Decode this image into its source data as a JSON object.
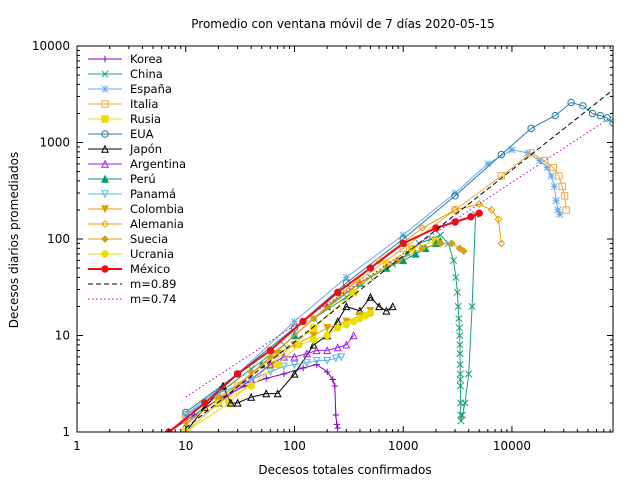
{
  "chart_data": {
    "type": "line",
    "title": "Promedio con ventana móvil de 7 días 2020-05-15",
    "xlabel": "Decesos totales confirmados",
    "ylabel": "Decesos diarios promediados",
    "xscale": "log",
    "yscale": "log",
    "xlim": [
      1,
      85000
    ],
    "ylim": [
      1,
      10000
    ],
    "xticks": [
      {
        "value": 1,
        "label": "1"
      },
      {
        "value": 10,
        "label": "10"
      },
      {
        "value": 100,
        "label": "100"
      },
      {
        "value": 1000,
        "label": "1000"
      },
      {
        "value": 10000,
        "label": "10000"
      }
    ],
    "yticks": [
      {
        "value": 1,
        "label": "1"
      },
      {
        "value": 10,
        "label": "10"
      },
      {
        "value": 100,
        "label": "100"
      },
      {
        "value": 1000,
        "label": "1000"
      },
      {
        "value": 10000,
        "label": "10000"
      }
    ],
    "grid": false,
    "legend_position": "top-left",
    "series": [
      {
        "name": "Korea",
        "color": "#7f00bf",
        "marker": "plus",
        "x": [
          7,
          12,
          20,
          35,
          55,
          80,
          120,
          160,
          200,
          225,
          235,
          240,
          245,
          250
        ],
        "y": [
          1,
          1.5,
          2.2,
          3,
          3.6,
          4,
          4.6,
          5,
          4.2,
          3.5,
          3,
          1.5,
          1.2,
          1.1
        ]
      },
      {
        "name": "China",
        "color": "#1a9f7f",
        "marker": "x",
        "x": [
          10,
          20,
          40,
          80,
          150,
          300,
          500,
          800,
          1100,
          1400,
          1800,
          2200,
          2600,
          2900,
          3050,
          3150,
          3200,
          3250,
          3290,
          3310,
          3320,
          3330,
          3340,
          3345,
          3350,
          3360,
          3370,
          3380,
          3400,
          3500,
          3700,
          4000,
          4300,
          4633
        ],
        "y": [
          1.2,
          2.5,
          4.5,
          8,
          15,
          25,
          40,
          55,
          70,
          90,
          100,
          110,
          90,
          60,
          40,
          28,
          20,
          15,
          12,
          10,
          8,
          6.5,
          5,
          4,
          3.5,
          3,
          2,
          1.5,
          1.3,
          1.5,
          2,
          4,
          20,
          180
        ]
      },
      {
        "name": "España",
        "color": "#66aaee",
        "marker": "star",
        "x": [
          10,
          30,
          100,
          300,
          1000,
          3000,
          6000,
          10000,
          14000,
          18000,
          21000,
          23000,
          24500,
          25500,
          26500,
          27500
        ],
        "y": [
          1.5,
          4,
          14,
          40,
          110,
          300,
          600,
          840,
          780,
          650,
          550,
          450,
          350,
          250,
          200,
          180
        ]
      },
      {
        "name": "Italia",
        "color": "#eeaa44",
        "marker": "square",
        "x": [
          10,
          30,
          100,
          300,
          1000,
          3000,
          8000,
          15000,
          20000,
          24000,
          27000,
          29000,
          30500,
          31500
        ],
        "y": [
          1.5,
          3,
          10,
          30,
          80,
          200,
          450,
          780,
          650,
          550,
          450,
          350,
          280,
          200
        ]
      },
      {
        "name": "Rusia",
        "color": "#f2d800",
        "marker": "square-filled",
        "x": [
          10,
          25,
          60,
          150,
          350,
          700,
          1200,
          2000
        ],
        "y": [
          1,
          2,
          5,
          12,
          28,
          55,
          80,
          95
        ]
      },
      {
        "name": "EUA",
        "color": "#2b7aa5",
        "marker": "circle",
        "x": [
          10,
          30,
          100,
          300,
          1000,
          3000,
          8000,
          15000,
          25000,
          35000,
          45000,
          55000,
          65000,
          75000,
          85000
        ],
        "y": [
          1.6,
          4,
          12,
          35,
          100,
          280,
          750,
          1400,
          1900,
          2600,
          2400,
          2000,
          1900,
          1800,
          1600
        ]
      },
      {
        "name": "Japón",
        "color": "#000000",
        "marker": "triangle",
        "x": [
          10,
          15,
          22,
          26,
          30,
          40,
          55,
          70,
          100,
          150,
          200,
          250,
          300,
          400,
          500,
          600,
          700,
          800
        ],
        "y": [
          1,
          1.8,
          3,
          2,
          2,
          2.3,
          2.5,
          2.5,
          4,
          8,
          10,
          14,
          20,
          18,
          25,
          20,
          18,
          20
        ]
      },
      {
        "name": "Argentina",
        "color": "#a020f0",
        "marker": "triangle",
        "x": [
          10,
          20,
          40,
          60,
          80,
          100,
          130,
          160,
          200,
          250,
          300,
          350
        ],
        "y": [
          1,
          2,
          3.5,
          5,
          6,
          6,
          6.5,
          7,
          7,
          7.5,
          8,
          10
        ]
      },
      {
        "name": "Perú",
        "color": "#009e73",
        "marker": "triangle-filled",
        "x": [
          20,
          50,
          100,
          200,
          400,
          700,
          1000,
          1300,
          1600,
          2000,
          2200
        ],
        "y": [
          2,
          5,
          10,
          20,
          35,
          50,
          60,
          70,
          80,
          90,
          95
        ]
      },
      {
        "name": "Panamá",
        "color": "#56b4e9",
        "marker": "triangle-down",
        "x": [
          10,
          20,
          40,
          60,
          80,
          100,
          130,
          160,
          200,
          240,
          270
        ],
        "y": [
          1.5,
          2.5,
          3.5,
          4.2,
          4.8,
          5,
          5.2,
          5.5,
          5.5,
          5.8,
          6
        ]
      },
      {
        "name": "Colombia",
        "color": "#e69f00",
        "marker": "triangle-down-filled",
        "x": [
          10,
          20,
          40,
          70,
          100,
          150,
          200,
          300,
          400,
          500
        ],
        "y": [
          1.2,
          2.2,
          4,
          6.5,
          8,
          10,
          12,
          14,
          16,
          18
        ]
      },
      {
        "name": "Alemania",
        "color": "#e69f00",
        "marker": "diamond",
        "x": [
          20,
          60,
          200,
          600,
          1500,
          3000,
          5000,
          6500,
          7500,
          8000
        ],
        "y": [
          2,
          6,
          20,
          60,
          130,
          200,
          230,
          200,
          160,
          90
        ]
      },
      {
        "name": "Suecia",
        "color": "#d4a017",
        "marker": "diamond-filled",
        "x": [
          20,
          60,
          150,
          400,
          900,
          1500,
          2200,
          2800,
          3300,
          3600
        ],
        "y": [
          2,
          6,
          15,
          35,
          60,
          80,
          90,
          90,
          80,
          75
        ]
      },
      {
        "name": "Ucrania",
        "color": "#e8de00",
        "marker": "circle-filled",
        "x": [
          10,
          20,
          40,
          70,
          110,
          150,
          200,
          250,
          300,
          350,
          400,
          450,
          500
        ],
        "y": [
          1,
          2,
          3,
          5,
          8,
          9,
          10,
          12,
          13,
          14,
          15,
          16,
          17
        ]
      },
      {
        "name": "México",
        "color": "#e8101a",
        "marker": "circle-filled",
        "x": [
          7,
          15,
          30,
          60,
          120,
          250,
          500,
          1000,
          2000,
          3000,
          4200,
          5000
        ],
        "y": [
          1,
          2,
          4,
          7,
          14,
          28,
          50,
          90,
          130,
          150,
          170,
          185
        ]
      },
      {
        "name": "m=0.89",
        "color": "#000000",
        "style": "dashed",
        "x": [
          10,
          85000
        ],
        "y": [
          1.1,
          3520
        ]
      },
      {
        "name": "m=0.74",
        "color": "#c000c0",
        "style": "dotted",
        "x": [
          10,
          85000
        ],
        "y": [
          2.3,
          1890
        ]
      }
    ]
  }
}
